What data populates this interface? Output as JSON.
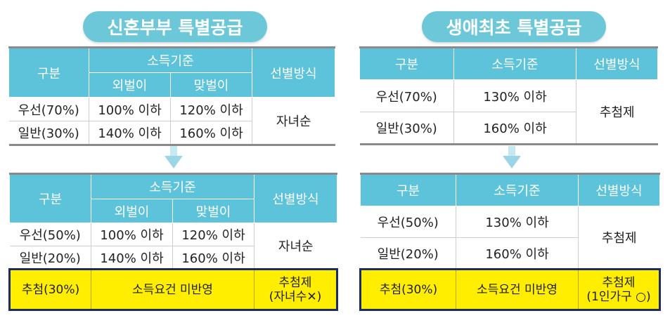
{
  "left": {
    "title": "신혼부부 특별공급",
    "headers": {
      "category": "구분",
      "income": "소득기준",
      "single_income": "외벌이",
      "dual_income": "맞벌이",
      "method": "선별방식"
    },
    "before": {
      "rows": [
        {
          "category": "우선(70%)",
          "single": "100% 이하",
          "dual": "120% 이하"
        },
        {
          "category": "일반(30%)",
          "single": "140% 이하",
          "dual": "160% 이하"
        }
      ],
      "method": "자녀순"
    },
    "after": {
      "rows": [
        {
          "category": "우선(50%)",
          "single": "100% 이하",
          "dual": "120% 이하"
        },
        {
          "category": "일반(20%)",
          "single": "140% 이하",
          "dual": "160% 이하"
        }
      ],
      "method": "자녀순",
      "lottery": {
        "category": "추첨(30%)",
        "income": "소득요건 미반영",
        "method_line1": "추첨제",
        "method_line2": "(자녀수✕)"
      }
    }
  },
  "right": {
    "title": "생애최초 특별공급",
    "headers": {
      "category": "구분",
      "income": "소득기준",
      "method": "선별방식"
    },
    "before": {
      "rows": [
        {
          "category": "우선(70%)",
          "income": "130% 이하"
        },
        {
          "category": "일반(30%)",
          "income": "160% 이하"
        }
      ],
      "method": "추첨제"
    },
    "after": {
      "rows": [
        {
          "category": "우선(50%)",
          "income": "130% 이하"
        },
        {
          "category": "일반(20%)",
          "income": "160% 이하"
        }
      ],
      "method": "추첨제",
      "lottery": {
        "category": "추첨(30%)",
        "income": "소득요건 미반영",
        "method_line1": "추첨제",
        "method_line2": "(1인가구 ○)"
      }
    }
  },
  "colors": {
    "header_teal": "#5cc3db",
    "pill_teal": "#6cc8d8",
    "highlight_yellow": "#ffee00",
    "highlight_border_navy": "#1b2c6a",
    "arrow_blue": "#9bd6e6"
  },
  "icons": [
    "down-arrow-icon"
  ]
}
